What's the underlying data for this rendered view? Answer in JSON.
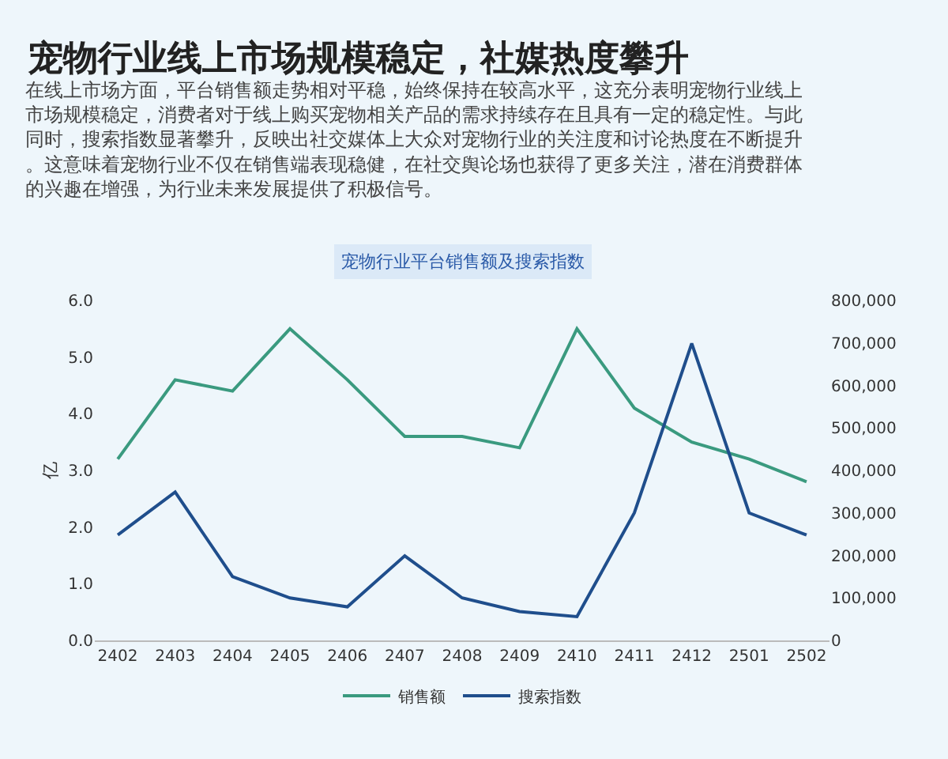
{
  "chart_data": {
    "type": "line",
    "title": "宠物行业线上市场规模稳定，社媒热度攀升",
    "subtitle": "在线上市场方面，平台销售额走势相对平稳，始终保持在较高水平，这充分表明宠物行业线上市场规模稳定，消费者对于线上购买宠物相关产品的需求持续存在且具有一定的稳定性。与此同时，搜索指数显著攀升，反映出社交媒体上大众对宠物行业的关注度和讨论热度在不断提升。这意味着宠物行业不仅在销售端表现稳健，在社交舆论场也获得了更多关注，潜在消费群体的兴趣在增强，为行业未来发展提供了积极信号。",
    "annotations": [
      "宠物行业平台销售额及搜索指数"
    ],
    "ylabel": "亿",
    "categories": [
      "2402",
      "2403",
      "2404",
      "2405",
      "2406",
      "2407",
      "2408",
      "2409",
      "2410",
      "2411",
      "2412",
      "2501",
      "2502"
    ],
    "series": [
      {
        "name": "销售额",
        "color": "#3a9a7f",
        "values": [
          3.2,
          4.6,
          4.4,
          5.5,
          4.6,
          3.6,
          3.6,
          3.4,
          5.5,
          4.1,
          3.5,
          3.2,
          2.8
        ]
      },
      {
        "name": "搜索指数",
        "color": "#1f4e8c",
        "axis": "y2",
        "values": [
          248000,
          349000,
          150000,
          100000,
          79000,
          199000,
          100000,
          68000,
          56000,
          300000,
          699000,
          300000,
          248000
        ]
      }
    ],
    "ylim": [
      0,
      6
    ],
    "yticks": [
      {
        "value": 0,
        "label": "0.0"
      },
      {
        "value": 1,
        "label": "1.0"
      },
      {
        "value": 2,
        "label": "2.0"
      },
      {
        "value": 3,
        "label": "3.0"
      },
      {
        "value": 4,
        "label": "4.0"
      },
      {
        "value": 5,
        "label": "5.0"
      },
      {
        "value": 6,
        "label": "6.0"
      }
    ],
    "y2lim": [
      0,
      800000
    ],
    "y2ticks": [
      {
        "value": 0,
        "label": "0"
      },
      {
        "value": 100000,
        "label": "100,000"
      },
      {
        "value": 200000,
        "label": "200,000"
      },
      {
        "value": 300000,
        "label": "300,000"
      },
      {
        "value": 400000,
        "label": "400,000"
      },
      {
        "value": 500000,
        "label": "500,000"
      },
      {
        "value": 600000,
        "label": "600,000"
      },
      {
        "value": 700000,
        "label": "700,000"
      },
      {
        "value": 800000,
        "label": "800,000"
      }
    ],
    "grid": false,
    "legend": "bottom",
    "marker": "none",
    "line_style": "solid"
  }
}
